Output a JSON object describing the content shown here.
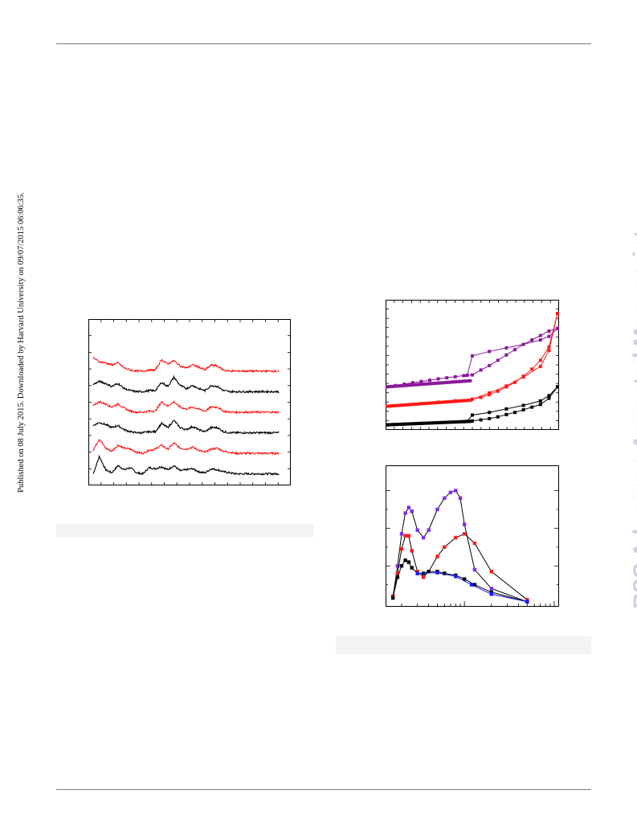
{
  "page": {
    "side_notice": "Published on 08 July 2015. Downloaded by Harvard University on 09/07/2015 06:06:35.",
    "watermark": "RSC Advances Accepted Manuscript"
  },
  "colors": {
    "black": "#000000",
    "red": "#ff1a1a",
    "purple": "#8a1a9a",
    "violet": "#7a2ef0",
    "blue": "#1a1aff",
    "watermark": "#cfcfdf"
  },
  "chart_data": [
    {
      "type": "line",
      "description_role": "stacked XRD-style patterns",
      "x": [
        5,
        6.5,
        8,
        9.5,
        11,
        12.5,
        14,
        15.5,
        17,
        18.5,
        20,
        21.5,
        23,
        24.5,
        26,
        27.5,
        29,
        30.5,
        32,
        33.5,
        35,
        36.5,
        38,
        39.5,
        41,
        42.5,
        44,
        45.5,
        47,
        48.5,
        50
      ],
      "xlim": [
        5,
        50
      ],
      "ylim": [
        0,
        7
      ],
      "series": [
        {
          "color": "#000000",
          "offset": 0.2,
          "values": [
            0.05,
            0.9,
            0.25,
            0.1,
            0.45,
            0.25,
            0.35,
            0.1,
            0.05,
            0.35,
            0.3,
            0.4,
            0.25,
            0.45,
            0.2,
            0.25,
            0.3,
            0.15,
            0.1,
            0.3,
            0.25,
            0.15,
            0.1,
            0.05,
            0.05,
            0.05,
            0.05,
            0.05,
            0.05,
            0.05,
            0.05
          ]
        },
        {
          "color": "#ff1a1a",
          "offset": 1.2,
          "values": [
            0.2,
            0.75,
            0.3,
            0.15,
            0.45,
            0.3,
            0.25,
            0.1,
            0.05,
            0.2,
            0.25,
            0.45,
            0.25,
            0.55,
            0.3,
            0.25,
            0.35,
            0.2,
            0.1,
            0.25,
            0.3,
            0.15,
            0.1,
            0.05,
            0.05,
            0.05,
            0.05,
            0.05,
            0.05,
            0.05,
            0.05
          ]
        },
        {
          "color": "#000000",
          "offset": 2.2,
          "values": [
            0.4,
            0.55,
            0.45,
            0.3,
            0.4,
            0.2,
            0.1,
            0.05,
            0.05,
            0.1,
            0.1,
            0.5,
            0.3,
            0.65,
            0.3,
            0.2,
            0.35,
            0.2,
            0.1,
            0.3,
            0.3,
            0.1,
            0.05,
            0.05,
            0.05,
            0.05,
            0.05,
            0.05,
            0.05,
            0.05,
            0.05
          ]
        },
        {
          "color": "#ff1a1a",
          "offset": 3.2,
          "values": [
            0.4,
            0.55,
            0.45,
            0.3,
            0.45,
            0.25,
            0.1,
            0.05,
            0.05,
            0.1,
            0.1,
            0.55,
            0.35,
            0.55,
            0.3,
            0.2,
            0.3,
            0.2,
            0.1,
            0.3,
            0.3,
            0.1,
            0.05,
            0.05,
            0.05,
            0.05,
            0.05,
            0.05,
            0.05,
            0.05,
            0.05
          ]
        },
        {
          "color": "#000000",
          "offset": 4.2,
          "values": [
            0.4,
            0.55,
            0.45,
            0.3,
            0.45,
            0.2,
            0.1,
            0.05,
            0.05,
            0.1,
            0.1,
            0.5,
            0.3,
            0.75,
            0.35,
            0.2,
            0.35,
            0.2,
            0.1,
            0.35,
            0.3,
            0.1,
            0.05,
            0.05,
            0.05,
            0.05,
            0.05,
            0.05,
            0.05,
            0.05,
            0.05
          ]
        },
        {
          "color": "#ff1a1a",
          "offset": 5.2,
          "values": [
            0.7,
            0.5,
            0.45,
            0.35,
            0.45,
            0.2,
            0.1,
            0.05,
            0.05,
            0.1,
            0.1,
            0.6,
            0.4,
            0.55,
            0.3,
            0.2,
            0.35,
            0.25,
            0.1,
            0.35,
            0.3,
            0.1,
            0.05,
            0.05,
            0.05,
            0.05,
            0.05,
            0.05,
            0.05,
            0.05,
            0.05
          ]
        }
      ]
    },
    {
      "type": "scatter",
      "description_role": "isotherms with markers",
      "xlim": [
        0,
        1
      ],
      "ylim": [
        0,
        7
      ],
      "series": [
        {
          "color": "#8a1a9a",
          "points": [
            [
              0.0,
              2.35
            ],
            [
              0.05,
              2.42
            ],
            [
              0.1,
              2.5
            ],
            [
              0.15,
              2.58
            ],
            [
              0.2,
              2.65
            ],
            [
              0.25,
              2.72
            ],
            [
              0.3,
              2.8
            ],
            [
              0.35,
              2.86
            ],
            [
              0.4,
              2.92
            ],
            [
              0.45,
              2.98
            ],
            [
              0.5,
              3.02
            ],
            [
              0.55,
              3.3
            ],
            [
              0.6,
              3.55
            ],
            [
              0.65,
              3.85
            ],
            [
              0.7,
              4.15
            ],
            [
              0.75,
              4.45
            ],
            [
              0.8,
              4.75
            ],
            [
              0.85,
              5.0
            ],
            [
              0.9,
              5.25
            ],
            [
              0.95,
              5.5
            ],
            [
              1.0,
              5.65
            ]
          ],
          "branch": [
            [
              0.47,
              3.0
            ],
            [
              0.5,
              4.1
            ],
            [
              0.6,
              4.35
            ],
            [
              0.7,
              4.55
            ],
            [
              0.8,
              4.75
            ],
            [
              0.9,
              5.0
            ],
            [
              0.95,
              5.2
            ],
            [
              1.0,
              5.65
            ]
          ]
        },
        {
          "color": "#ff1a1a",
          "points": [
            [
              0.0,
              1.25
            ],
            [
              0.1,
              1.32
            ],
            [
              0.2,
              1.4
            ],
            [
              0.3,
              1.48
            ],
            [
              0.4,
              1.56
            ],
            [
              0.5,
              1.65
            ],
            [
              0.55,
              1.75
            ],
            [
              0.6,
              1.9
            ],
            [
              0.65,
              2.1
            ],
            [
              0.7,
              2.35
            ],
            [
              0.75,
              2.6
            ],
            [
              0.8,
              2.95
            ],
            [
              0.85,
              3.35
            ],
            [
              0.9,
              3.85
            ],
            [
              0.95,
              4.6
            ],
            [
              1.0,
              6.5
            ]
          ],
          "branch": [
            [
              0.5,
              1.65
            ],
            [
              0.6,
              2.0
            ],
            [
              0.7,
              2.4
            ],
            [
              0.8,
              2.9
            ],
            [
              0.9,
              3.5
            ],
            [
              0.95,
              4.4
            ],
            [
              1.0,
              6.5
            ]
          ]
        },
        {
          "color": "#000000",
          "points": [
            [
              0.0,
              0.2
            ],
            [
              0.1,
              0.24
            ],
            [
              0.2,
              0.28
            ],
            [
              0.3,
              0.32
            ],
            [
              0.4,
              0.36
            ],
            [
              0.45,
              0.38
            ],
            [
              0.5,
              0.42
            ],
            [
              0.55,
              0.48
            ],
            [
              0.6,
              0.55
            ],
            [
              0.65,
              0.65
            ],
            [
              0.7,
              0.78
            ],
            [
              0.75,
              0.9
            ],
            [
              0.8,
              1.05
            ],
            [
              0.85,
              1.2
            ],
            [
              0.9,
              1.35
            ],
            [
              0.95,
              1.7
            ],
            [
              1.0,
              2.35
            ]
          ],
          "branch": [
            [
              0.47,
              0.4
            ],
            [
              0.5,
              0.75
            ],
            [
              0.6,
              0.9
            ],
            [
              0.7,
              1.1
            ],
            [
              0.8,
              1.3
            ],
            [
              0.9,
              1.55
            ],
            [
              0.95,
              1.85
            ],
            [
              1.0,
              2.35
            ]
          ]
        }
      ]
    },
    {
      "type": "line",
      "description_role": "pore size distributions (log x)",
      "xlim": [
        1.5,
        100
      ],
      "ylim": [
        0,
        3.5
      ],
      "series": [
        {
          "color": "#7a2ef0",
          "points": [
            [
              1.6,
              0.15
            ],
            [
              1.8,
              1.0
            ],
            [
              2.0,
              1.85
            ],
            [
              2.2,
              2.4
            ],
            [
              2.4,
              2.55
            ],
            [
              2.6,
              2.45
            ],
            [
              3.0,
              1.95
            ],
            [
              3.5,
              1.75
            ],
            [
              4,
              1.95
            ],
            [
              5,
              2.5
            ],
            [
              6,
              2.8
            ],
            [
              7,
              2.95
            ],
            [
              8,
              3.0
            ],
            [
              9,
              2.8
            ],
            [
              10,
              2.1
            ],
            [
              13,
              0.9
            ],
            [
              20,
              0.4
            ],
            [
              50,
              0.05
            ]
          ]
        },
        {
          "color": "#ff1a1a",
          "points": [
            [
              1.6,
              0.2
            ],
            [
              1.8,
              0.8
            ],
            [
              2.0,
              1.45
            ],
            [
              2.2,
              1.8
            ],
            [
              2.4,
              1.8
            ],
            [
              2.6,
              1.4
            ],
            [
              3.0,
              0.85
            ],
            [
              3.5,
              0.7
            ],
            [
              4,
              0.85
            ],
            [
              5,
              1.25
            ],
            [
              6,
              1.5
            ],
            [
              8,
              1.75
            ],
            [
              10,
              1.85
            ],
            [
              13,
              1.6
            ],
            [
              20,
              0.85
            ],
            [
              50,
              0.1
            ]
          ]
        },
        {
          "color": "#000000",
          "points": [
            [
              1.6,
              0.15
            ],
            [
              1.8,
              0.7
            ],
            [
              2.0,
              1.0
            ],
            [
              2.2,
              1.15
            ],
            [
              2.4,
              1.1
            ],
            [
              2.6,
              0.95
            ],
            [
              3.0,
              0.8
            ],
            [
              3.5,
              0.8
            ],
            [
              4,
              0.85
            ],
            [
              5,
              0.85
            ],
            [
              6,
              0.8
            ],
            [
              8,
              0.75
            ],
            [
              10,
              0.65
            ],
            [
              13,
              0.5
            ],
            [
              20,
              0.3
            ],
            [
              50,
              0.05
            ]
          ]
        },
        {
          "color": "#1a1aff",
          "points": [
            [
              3.0,
              0.8
            ],
            [
              5,
              0.82
            ],
            [
              8,
              0.72
            ],
            [
              12,
              0.5
            ],
            [
              20,
              0.25
            ],
            [
              50,
              0.05
            ]
          ]
        }
      ]
    }
  ]
}
